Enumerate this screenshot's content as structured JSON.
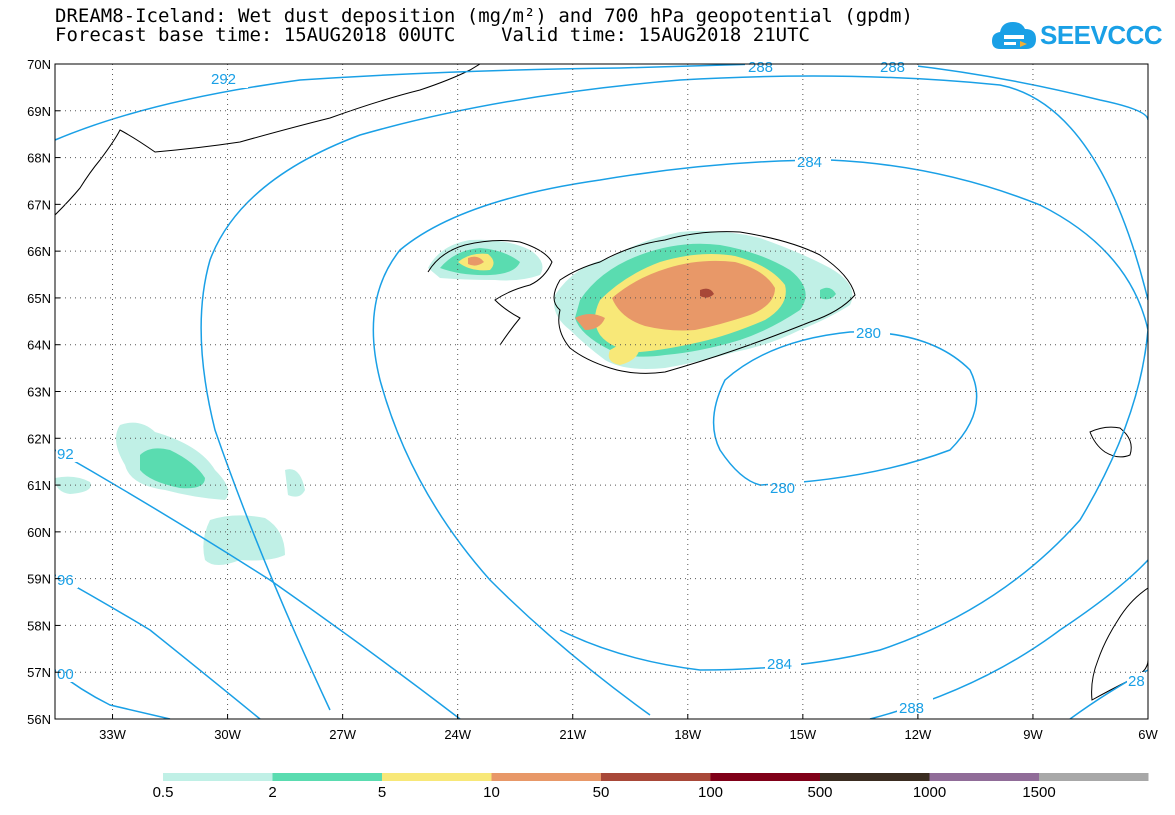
{
  "header": {
    "line1": "DREAM8-Iceland: Wet dust deposition (mg/m²) and 700 hPa geopotential (gpdm)",
    "line2": "Forecast base time: 15AUG2018 00UTC    Valid time: 15AUG2018 21UTC"
  },
  "logo": {
    "text": "SEEVCCC",
    "icon": "cloud-icon",
    "color": "#1aa0e6"
  },
  "map": {
    "lon_range": [
      -34.5,
      -6
    ],
    "lat_range": [
      56,
      70
    ],
    "grid": true,
    "lat_labels": [
      "70N",
      "69N",
      "68N",
      "67N",
      "66N",
      "65N",
      "64N",
      "63N",
      "62N",
      "61N",
      "60N",
      "59N",
      "58N",
      "57N",
      "56N"
    ],
    "lon_labels": [
      "33W",
      "30W",
      "27W",
      "24W",
      "21W",
      "18W",
      "15W",
      "12W",
      "9W",
      "6W"
    ],
    "contour_color": "#1aa0e6",
    "contour_labels": [
      "292",
      "288",
      "288",
      "284",
      "280",
      "280",
      "284",
      "288",
      "92",
      "96",
      "00",
      "28"
    ]
  },
  "legend": {
    "colors": [
      "#c0f0e6",
      "#5adcb0",
      "#f8e878",
      "#e89868",
      "#a84838",
      "#800018",
      "#3a2c20",
      "#906c98",
      "#a8a8a8"
    ],
    "labels": [
      "0.5",
      "2",
      "5",
      "10",
      "50",
      "100",
      "500",
      "1000",
      "1500"
    ]
  }
}
